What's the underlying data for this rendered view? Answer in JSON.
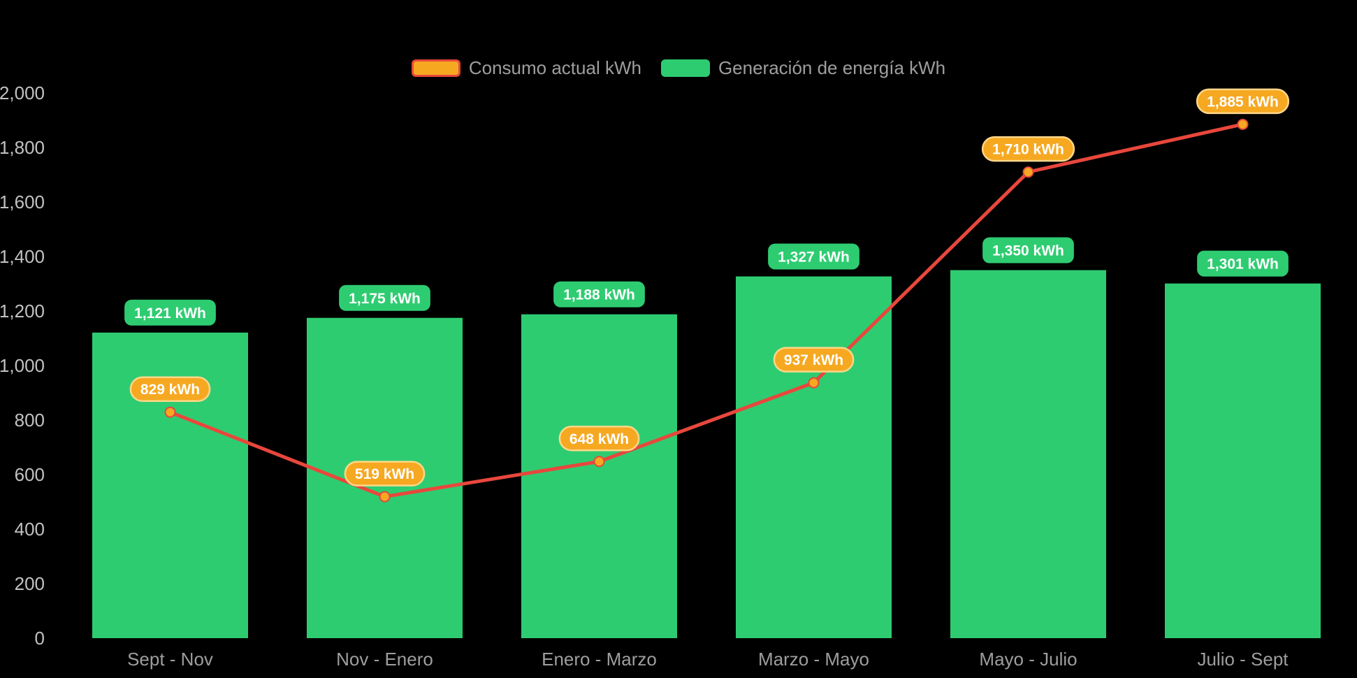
{
  "chart_data": {
    "type": "bar+line combo",
    "categories": [
      "Sept - Nov",
      "Nov - Enero",
      "Enero - Marzo",
      "Marzo - Mayo",
      "Mayo - Julio",
      "Julio - Sept"
    ],
    "series": [
      {
        "name": "Consumo actual kWh",
        "type": "line",
        "color": "#e8473c",
        "marker_color": "#f6a821",
        "marker_stroke": "#e8473c",
        "badge_fill": "#f6a821",
        "badge_border": "#ffd789",
        "values": [
          829,
          519,
          648,
          937,
          1710,
          1885
        ],
        "labels": [
          "829 kWh",
          "519 kWh",
          "648 kWh",
          "937 kWh",
          "1,710 kWh",
          "1,885 kWh"
        ]
      },
      {
        "name": "Generación de energía kWh",
        "type": "bar",
        "color": "#2ecc71",
        "badge_fill": "#2ecc71",
        "values": [
          1121,
          1175,
          1188,
          1327,
          1350,
          1301
        ],
        "labels": [
          "1,121 kWh",
          "1,175 kWh",
          "1,188 kWh",
          "1,327 kWh",
          "1,350 kWh",
          "1,301 kWh"
        ]
      }
    ],
    "ylim": [
      0,
      2000
    ],
    "yticks": [
      0,
      200,
      400,
      600,
      800,
      1000,
      1200,
      1400,
      1600,
      1800,
      2000
    ],
    "ytick_labels": [
      "0",
      "200",
      "400",
      "600",
      "800",
      "1,000",
      "1,200",
      "1,400",
      "1,600",
      "1,800",
      "2,000"
    ],
    "grid": false,
    "legend_position": "top-center",
    "axis": {
      "ytick_color": "#c2c2c2",
      "xtick_color": "#9e9e9e"
    },
    "badge_text_color": "#ffffff",
    "background": "#000000"
  }
}
